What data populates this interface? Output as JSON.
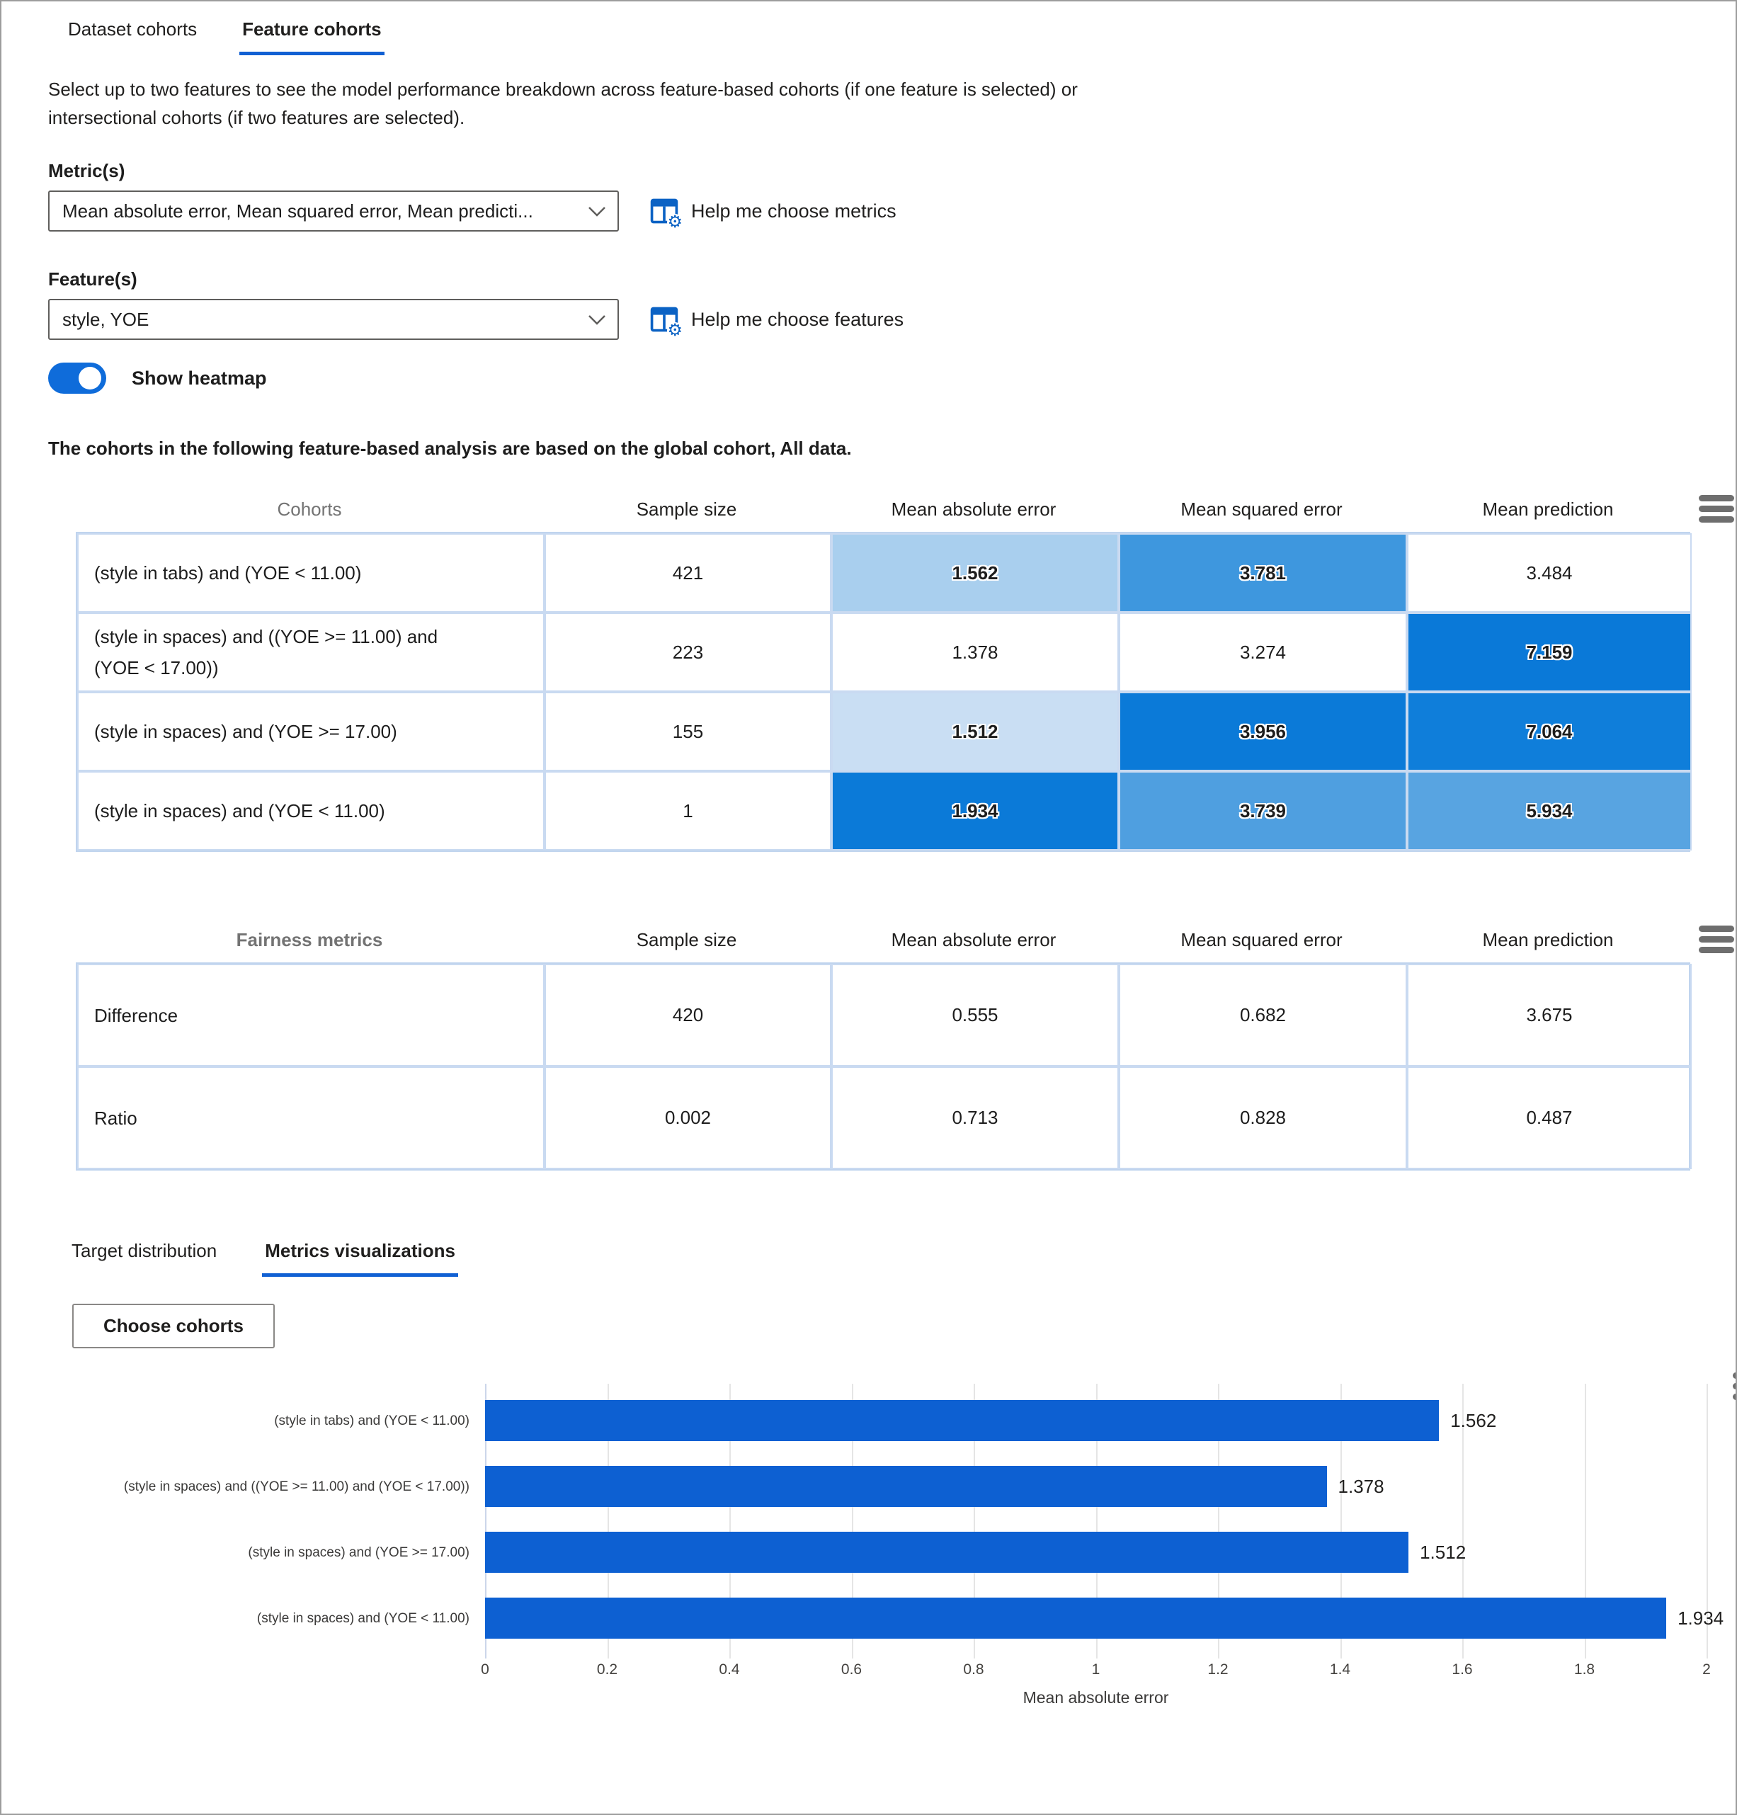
{
  "tabs_primary": [
    {
      "label": "Dataset cohorts",
      "active": false
    },
    {
      "label": "Feature cohorts",
      "active": true
    }
  ],
  "description": "Select up to two features to see the model performance breakdown across feature-based cohorts (if one feature is selected) or intersectional cohorts (if two features are selected).",
  "metric_section": {
    "label": "Metric(s)",
    "value": "Mean absolute error, Mean squared error, Mean predicti...",
    "help_label": "Help me choose metrics"
  },
  "feature_section": {
    "label": "Feature(s)",
    "value": "style, YOE",
    "help_label": "Help me choose features"
  },
  "heatmap_toggle": {
    "label": "Show heatmap",
    "state": "on"
  },
  "cohort_note": "The cohorts in the following feature-based analysis are based on the global cohort, All data.",
  "cohort_table": {
    "header": [
      "Cohorts",
      "Sample size",
      "Mean absolute error",
      "Mean squared error",
      "Mean prediction"
    ],
    "rows": [
      {
        "name": "(style in tabs) and (YOE < 11.00)",
        "sample_size": "421",
        "values": [
          "1.562",
          "3.781",
          "3.484"
        ],
        "cell_colors": [
          "#a9cfee",
          "#3e97de",
          "#ffffff"
        ]
      },
      {
        "name": "(style in spaces) and ((YOE >= 11.00) and (YOE < 17.00))",
        "sample_size": "223",
        "values": [
          "1.378",
          "3.274",
          "7.159"
        ],
        "cell_colors": [
          "#ffffff",
          "#ffffff",
          "#0a79d8"
        ]
      },
      {
        "name": "(style in spaces) and (YOE >= 17.00)",
        "sample_size": "155",
        "values": [
          "1.512",
          "3.956",
          "7.064"
        ],
        "cell_colors": [
          "#c9def3",
          "#0b7ad8",
          "#0f7eda"
        ]
      },
      {
        "name": "(style in spaces) and (YOE < 11.00)",
        "sample_size": "1",
        "values": [
          "1.934",
          "3.739",
          "5.934"
        ],
        "cell_colors": [
          "#0b7ad8",
          "#4f9fe0",
          "#58a4e1"
        ]
      }
    ]
  },
  "fairness_table": {
    "header": [
      "Fairness metrics",
      "Sample size",
      "Mean absolute error",
      "Mean squared error",
      "Mean prediction"
    ],
    "rows": [
      {
        "name": "Difference",
        "values": [
          "420",
          "0.555",
          "0.682",
          "3.675"
        ]
      },
      {
        "name": "Ratio",
        "values": [
          "0.002",
          "0.713",
          "0.828",
          "0.487"
        ]
      }
    ]
  },
  "tabs_secondary": [
    {
      "label": "Target distribution",
      "active": false
    },
    {
      "label": "Metrics visualizations",
      "active": true
    }
  ],
  "choose_cohorts_button": "Choose cohorts",
  "chart_data": {
    "type": "bar",
    "orientation": "horizontal",
    "categories": [
      "(style in tabs) and (YOE < 11.00)",
      "(style in spaces) and ((YOE >= 11.00) and (YOE < 17.00))",
      "(style in spaces) and (YOE >= 17.00)",
      "(style in spaces) and (YOE < 11.00)"
    ],
    "values": [
      1.562,
      1.378,
      1.512,
      1.934
    ],
    "value_labels": [
      "1.562",
      "1.378",
      "1.512",
      "1.934"
    ],
    "xlabel": "Mean absolute error",
    "xlim": [
      0,
      2
    ],
    "xticks": [
      "0",
      "0.2",
      "0.4",
      "0.6",
      "0.8",
      "1",
      "1.2",
      "1.4",
      "1.6",
      "1.8",
      "2"
    ],
    "grid": true,
    "legend": "none",
    "bar_color": "#0d60d2"
  },
  "colors": {
    "accent_blue": "#0f6cda",
    "tab_underline": "#1160d3",
    "bar_blue": "#0d60d2",
    "heatmap_max": "#0a79d8",
    "table_border": "#c9daf1",
    "grid_line": "#e5e5e5",
    "axis_line": "#ccd6ea",
    "hamburger_gray": "#6e6e6e",
    "muted_header_gray": "#737373"
  },
  "icons": {
    "column_options": "column-options-icon",
    "chevron": "chevron-down-icon",
    "menu": "hamburger-menu-icon"
  }
}
